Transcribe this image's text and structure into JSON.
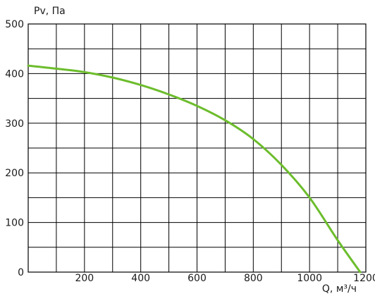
{
  "chart_data": {
    "type": "line",
    "title": "",
    "xlabel": "Q, м³/ч",
    "ylabel": "Pv, Па",
    "xlim": [
      0,
      1200
    ],
    "ylim": [
      0,
      500
    ],
    "x_ticks": [
      200,
      400,
      600,
      800,
      1000,
      1200
    ],
    "y_ticks": [
      0,
      100,
      200,
      300,
      400,
      500
    ],
    "grid": true,
    "line_color": "#6cbd2c",
    "series": [
      {
        "x": [
          0,
          100,
          200,
          300,
          400,
          500,
          600,
          700,
          800,
          900,
          1000,
          1100,
          1180
        ],
        "values": [
          416,
          410,
          403,
          392,
          377,
          358,
          335,
          306,
          268,
          216,
          150,
          64,
          0
        ]
      }
    ]
  }
}
